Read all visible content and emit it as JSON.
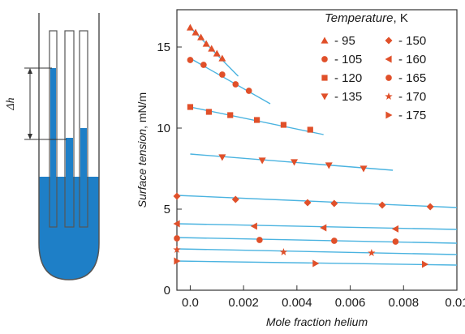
{
  "diagram": {
    "delta_h_label": "Δh"
  },
  "chart_data": {
    "type": "scatter",
    "title": "",
    "xlabel": "Mole fraction helium",
    "ylabel_italic": "Surface tension",
    "ylabel_unit": ", mN/m",
    "xlim": [
      -0.0005,
      0.01
    ],
    "ylim": [
      0,
      17.3
    ],
    "x_ticks": [
      0.0,
      0.002,
      0.004,
      0.006,
      0.008,
      0.01
    ],
    "x_tick_labels": [
      "0.0",
      "0.002",
      "0.004",
      "0.006",
      "0.008",
      "0.01"
    ],
    "y_ticks": [
      0,
      5,
      10,
      15
    ],
    "y_tick_labels": [
      "0",
      "5",
      "10",
      "15"
    ],
    "grid": false,
    "legend": {
      "title_italic": "Temperature",
      "title_unit": ", K",
      "placement": "top-right"
    },
    "colors": {
      "markers": "#e0502a",
      "fit_lines": "#4ab3e0",
      "axes": "#333333",
      "liquid": "#1e7fc7"
    },
    "series": [
      {
        "name": "- 95",
        "marker": "triangle-up",
        "fit": [
          [
            0.0,
            16.2
          ],
          [
            0.0018,
            13.2
          ]
        ],
        "x": [
          0.0,
          0.0002,
          0.0004,
          0.0006,
          0.0008,
          0.001,
          0.0012
        ],
        "y": [
          16.2,
          15.9,
          15.6,
          15.2,
          14.9,
          14.6,
          14.3
        ]
      },
      {
        "name": "- 105",
        "marker": "circle",
        "fit": [
          [
            0.0,
            14.3
          ],
          [
            0.003,
            11.5
          ]
        ],
        "x": [
          0.0,
          0.0005,
          0.0012,
          0.0017,
          0.0022
        ],
        "y": [
          14.2,
          13.9,
          13.3,
          12.7,
          12.3
        ]
      },
      {
        "name": "- 120",
        "marker": "square",
        "fit": [
          [
            0.0,
            11.3
          ],
          [
            0.005,
            9.6
          ]
        ],
        "x": [
          0.0,
          0.0007,
          0.0015,
          0.0025,
          0.0035,
          0.0045
        ],
        "y": [
          11.3,
          11.0,
          10.8,
          10.5,
          10.2,
          9.9
        ]
      },
      {
        "name": "- 135",
        "marker": "triangle-down",
        "fit": [
          [
            0.0,
            8.4
          ],
          [
            0.0076,
            7.4
          ]
        ],
        "x": [
          0.0012,
          0.0027,
          0.0039,
          0.0052,
          0.0065
        ],
        "y": [
          8.2,
          8.0,
          7.9,
          7.7,
          7.5
        ]
      },
      {
        "name": "- 150",
        "marker": "diamond",
        "fit": [
          [
            -0.0005,
            5.85
          ],
          [
            0.01,
            5.1
          ]
        ],
        "x": [
          -0.0005,
          0.0017,
          0.0044,
          0.0054,
          0.0072,
          0.009
        ],
        "y": [
          5.8,
          5.6,
          5.4,
          5.35,
          5.25,
          5.15
        ]
      },
      {
        "name": "- 160",
        "marker": "triangle-left",
        "fit": [
          [
            -0.0005,
            4.1
          ],
          [
            0.01,
            3.75
          ]
        ],
        "x": [
          -0.0005,
          0.0024,
          0.005,
          0.0077
        ],
        "y": [
          4.1,
          3.95,
          3.85,
          3.78
        ]
      },
      {
        "name": "- 165",
        "marker": "circle",
        "fit": [
          [
            -0.0005,
            3.25
          ],
          [
            0.01,
            2.9
          ]
        ],
        "x": [
          -0.0005,
          0.0026,
          0.0054,
          0.0077
        ],
        "y": [
          3.2,
          3.1,
          3.05,
          3.0
        ]
      },
      {
        "name": "- 170",
        "marker": "star",
        "fit": [
          [
            -0.0005,
            2.55
          ],
          [
            0.01,
            2.2
          ]
        ],
        "x": [
          -0.0005,
          0.0035,
          0.0068
        ],
        "y": [
          2.5,
          2.35,
          2.3
        ]
      },
      {
        "name": "- 175",
        "marker": "triangle-right",
        "fit": [
          [
            -0.0005,
            1.8
          ],
          [
            0.01,
            1.55
          ]
        ],
        "x": [
          -0.0005,
          0.0047,
          0.0088
        ],
        "y": [
          1.8,
          1.65,
          1.6
        ]
      }
    ]
  }
}
